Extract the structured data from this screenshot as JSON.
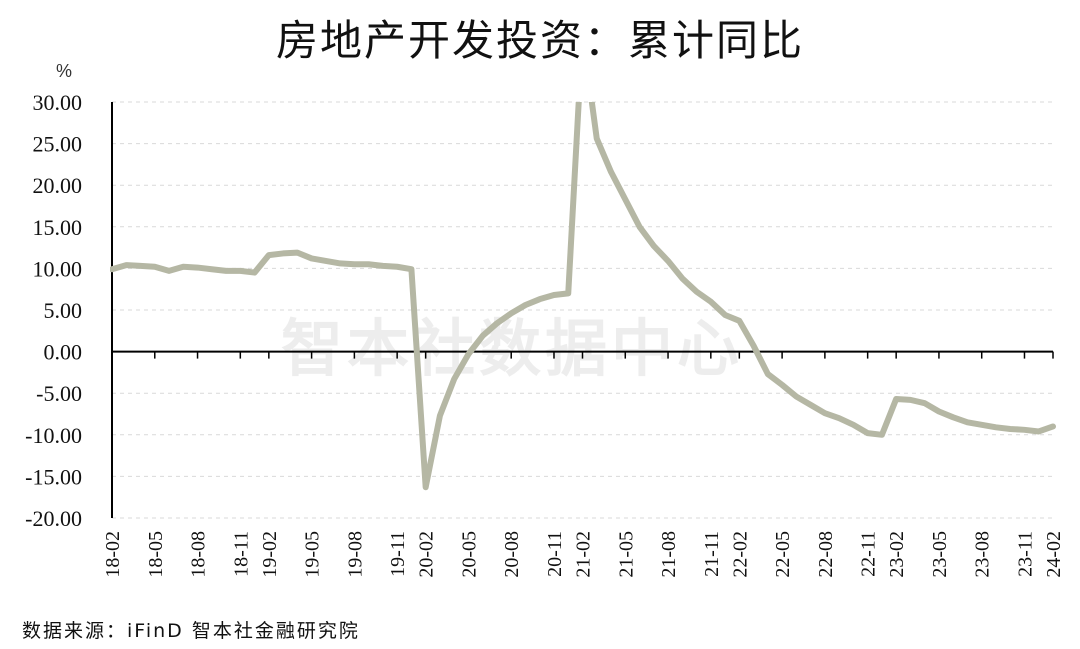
{
  "title": "房地产开发投资：累计同比",
  "unit_label": "%",
  "watermark": "智本社数据中心",
  "source": "数据来源：iFinD 智本社金融研究院",
  "chart_data": {
    "type": "line",
    "title": "房地产开发投资：累计同比",
    "ylabel": "%",
    "ylim": [
      -20,
      30
    ],
    "yticks": [
      "30.00",
      "25.00",
      "20.00",
      "15.00",
      "10.00",
      "5.00",
      "0.00",
      "-5.00",
      "-10.00",
      "-15.00",
      "-20.00"
    ],
    "xticks": [
      "18-02",
      "18-05",
      "18-08",
      "18-11",
      "19-02",
      "19-05",
      "19-08",
      "19-11",
      "20-02",
      "20-05",
      "20-08",
      "20-11",
      "21-02",
      "21-05",
      "21-08",
      "21-11",
      "22-02",
      "22-05",
      "22-08",
      "22-11",
      "23-02",
      "23-05",
      "23-08",
      "23-11",
      "24-02"
    ],
    "grid": "horizontal dashed",
    "line_color": "#b5b7a4",
    "x": [
      "18-02",
      "18-03",
      "18-04",
      "18-05",
      "18-06",
      "18-07",
      "18-08",
      "18-09",
      "18-10",
      "18-11",
      "18-12",
      "19-02",
      "19-03",
      "19-04",
      "19-05",
      "19-06",
      "19-07",
      "19-08",
      "19-09",
      "19-10",
      "19-11",
      "19-12",
      "20-02",
      "20-03",
      "20-04",
      "20-05",
      "20-06",
      "20-07",
      "20-08",
      "20-09",
      "20-10",
      "20-11",
      "20-12",
      "21-02",
      "21-03",
      "21-04",
      "21-05",
      "21-06",
      "21-07",
      "21-08",
      "21-09",
      "21-10",
      "21-11",
      "21-12",
      "22-02",
      "22-03",
      "22-04",
      "22-05",
      "22-06",
      "22-07",
      "22-08",
      "22-09",
      "22-10",
      "22-11",
      "22-12",
      "23-02",
      "23-03",
      "23-04",
      "23-05",
      "23-06",
      "23-07",
      "23-08",
      "23-09",
      "23-10",
      "23-11",
      "23-12",
      "24-02"
    ],
    "values": [
      9.9,
      10.4,
      10.3,
      10.2,
      9.7,
      10.2,
      10.1,
      9.9,
      9.7,
      9.7,
      9.5,
      11.6,
      11.8,
      11.9,
      11.2,
      10.9,
      10.6,
      10.5,
      10.5,
      10.3,
      10.2,
      9.9,
      -16.3,
      -7.7,
      -3.3,
      -0.3,
      1.9,
      3.4,
      4.6,
      5.6,
      6.3,
      6.8,
      7.0,
      38.3,
      25.6,
      21.6,
      18.3,
      15.0,
      12.7,
      10.9,
      8.8,
      7.2,
      6.0,
      4.4,
      3.7,
      0.7,
      -2.7,
      -4.0,
      -5.4,
      -6.4,
      -7.4,
      -8.0,
      -8.8,
      -9.8,
      -10.0,
      -5.7,
      -5.8,
      -6.2,
      -7.2,
      -7.9,
      -8.5,
      -8.8,
      -9.1,
      -9.3,
      -9.4,
      -9.6,
      -9.0
    ]
  }
}
